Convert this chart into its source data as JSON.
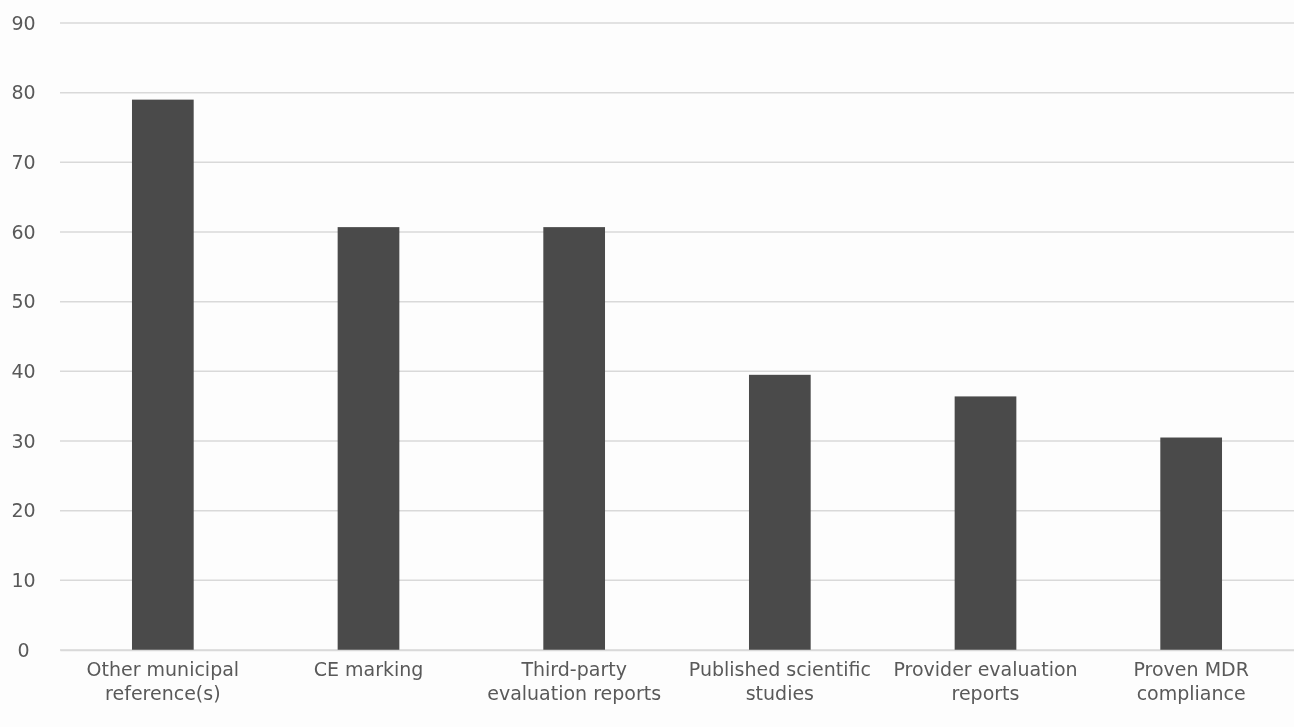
{
  "chart_data": {
    "type": "bar",
    "categories": [
      "Other municipal reference(s)",
      "CE marking",
      "Third-party evaluation reports",
      "Published scientific studies",
      "Provider evaluation reports",
      "Proven MDR compliance"
    ],
    "values": [
      79,
      60.7,
      60.7,
      39.5,
      36.4,
      30.5
    ],
    "color": "#4a4a4a",
    "ylim": [
      0,
      90
    ],
    "yticks": [
      0,
      10,
      20,
      30,
      40,
      50,
      60,
      70,
      80,
      90
    ],
    "grid": "y"
  }
}
